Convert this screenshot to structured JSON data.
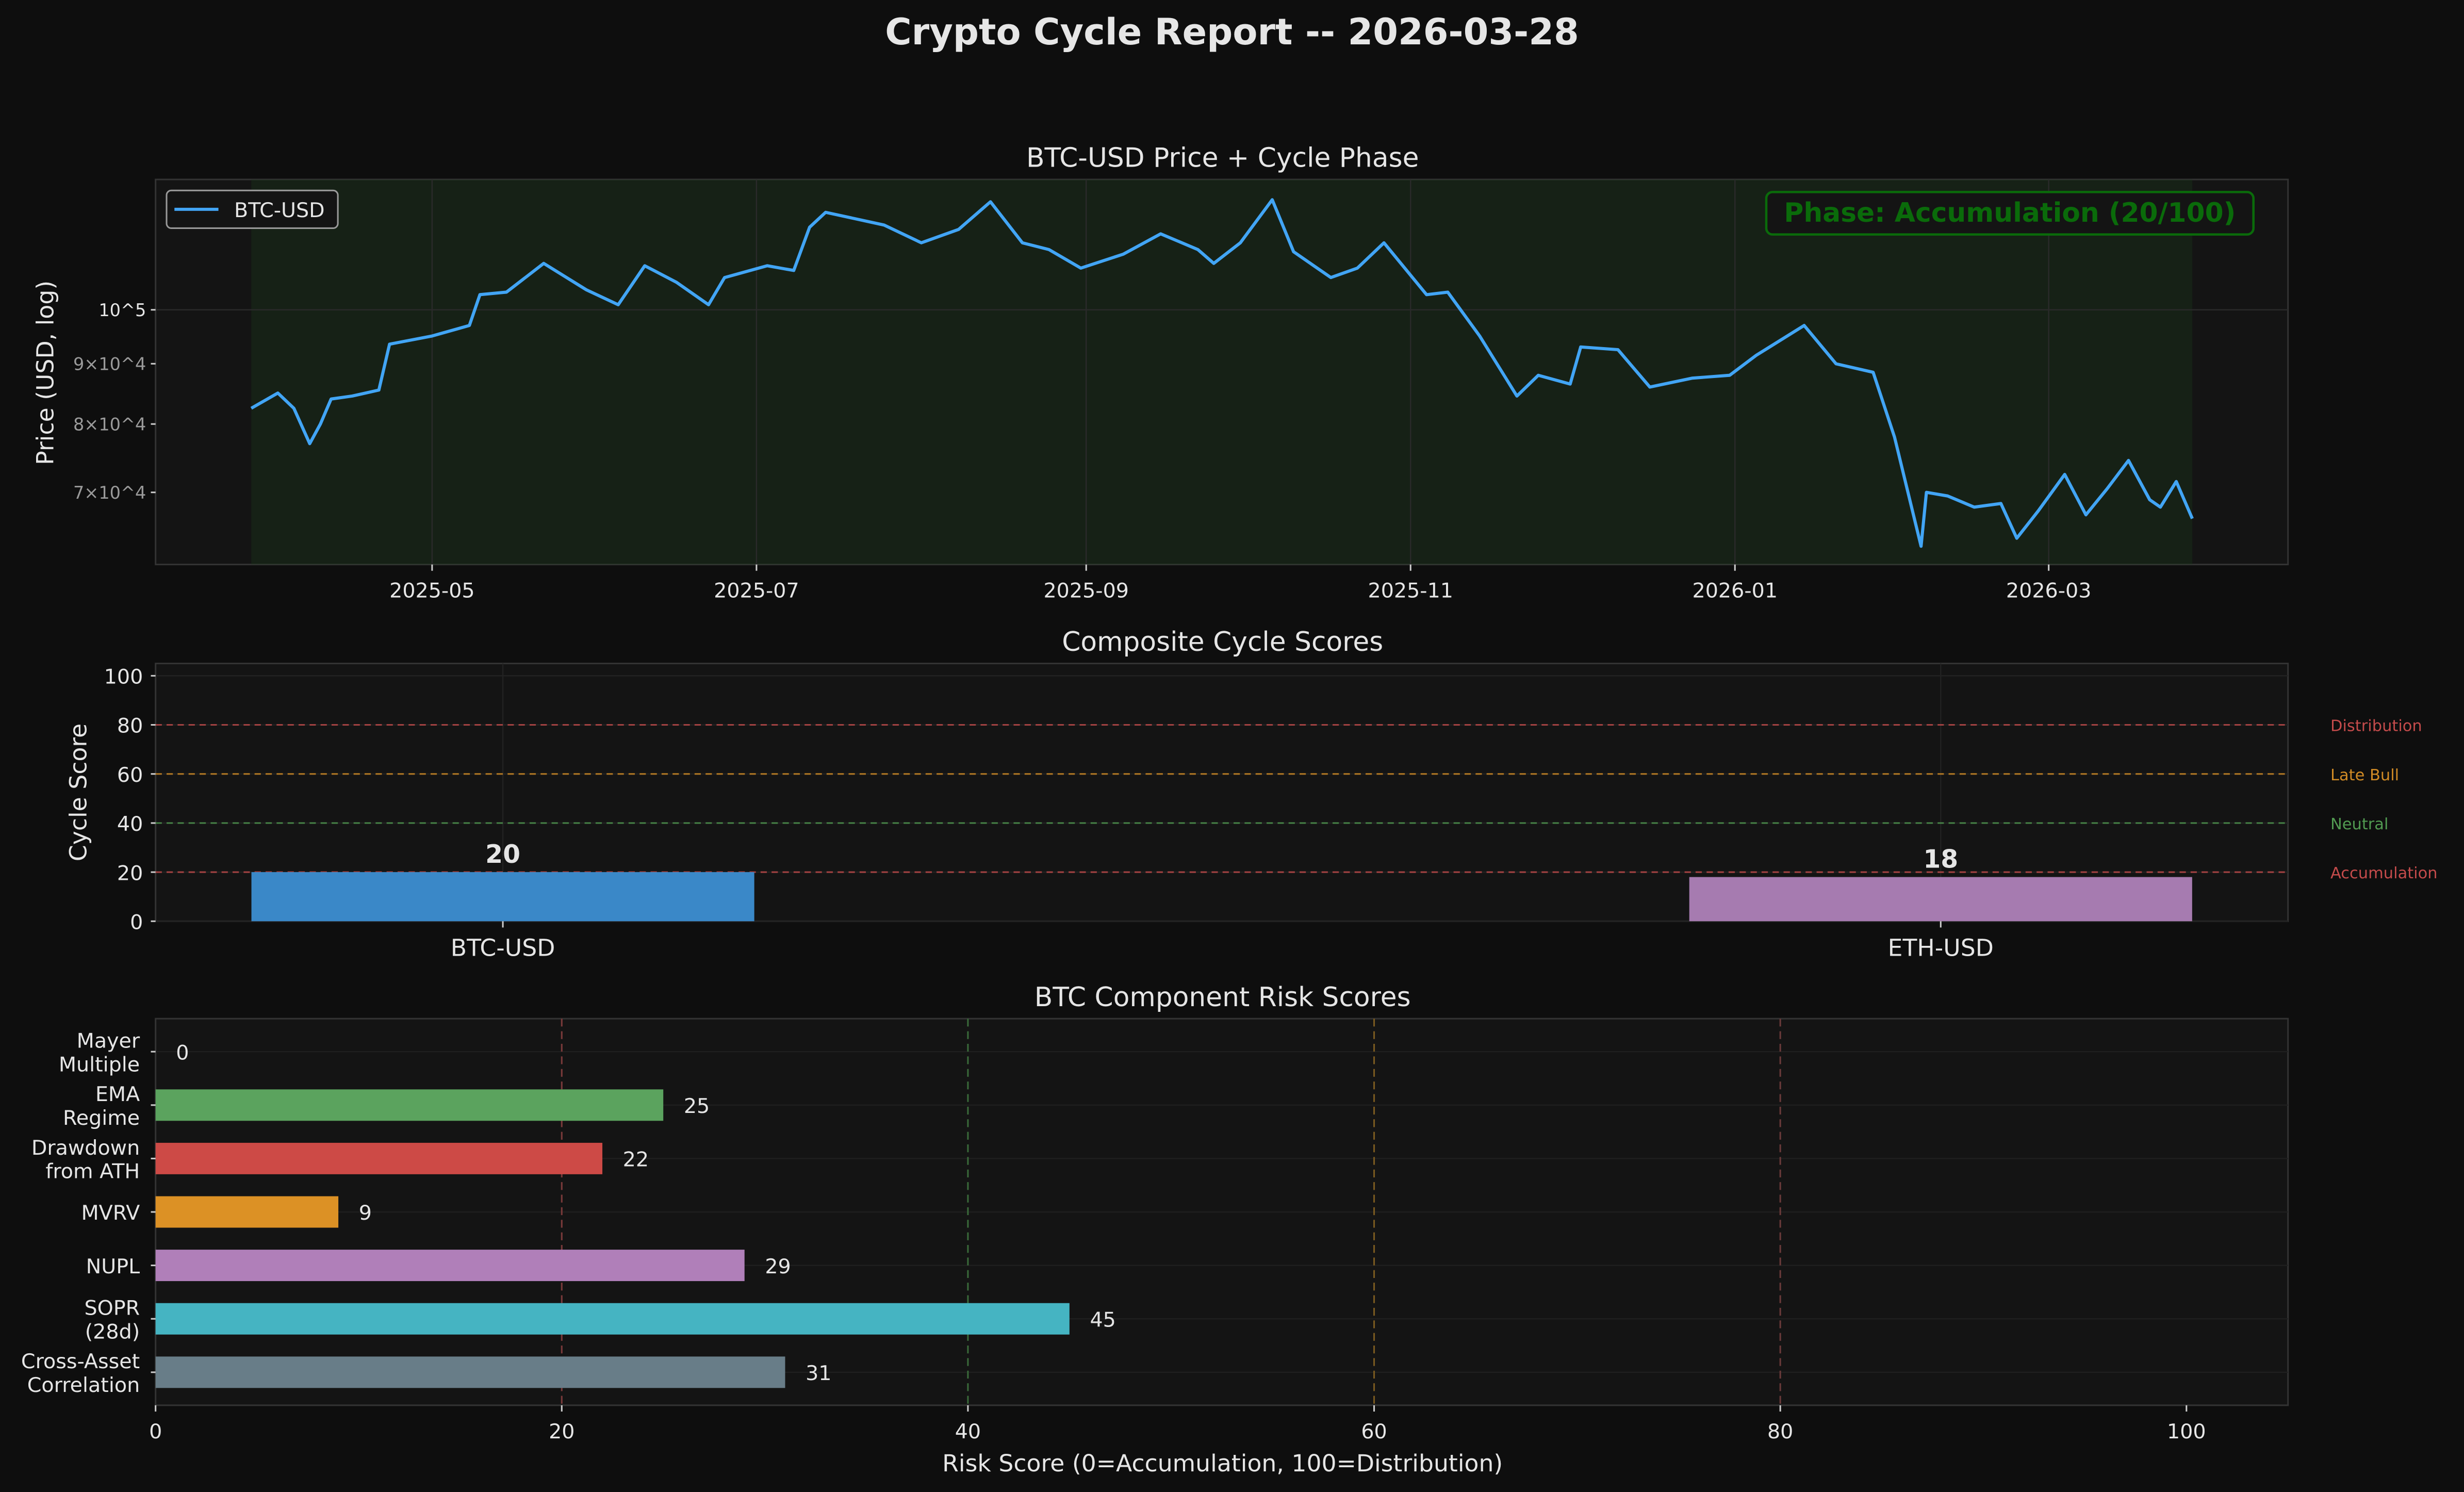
{
  "title": "Crypto Cycle Report -- 2026-03-28",
  "colors": {
    "background": "#0e0e0e",
    "axes_bg": "#141414",
    "btc_line": "#42a5f5",
    "phase_green": "#0a6b0a"
  },
  "chart_data": [
    {
      "type": "line",
      "title": "BTC-USD Price + Cycle Phase",
      "ylabel": "Price (USD, log)",
      "yscale": "log",
      "ylim": [
        60800,
        129000
      ],
      "xlim": [
        "2025-03-10",
        "2026-04-15"
      ],
      "x_ticks": [
        "2025-05",
        "2025-07",
        "2025-09",
        "2025-11",
        "2026-01",
        "2026-03"
      ],
      "y_ticks": [
        {
          "value": 100000,
          "label": "10^5"
        },
        {
          "value": 90000,
          "label": "9×10^4"
        },
        {
          "value": 80000,
          "label": "8×10^4"
        },
        {
          "value": 70000,
          "label": "7×10^4"
        }
      ],
      "legend": {
        "placement": "top-left",
        "entries": [
          "BTC-USD"
        ]
      },
      "annotation": "Phase: Accumulation (20/100)",
      "phase_shading": {
        "phase": "Accumulation",
        "color": "#1a3a1a"
      },
      "series": [
        {
          "name": "BTC-USD",
          "color": "#42a5f5",
          "points": [
            [
              "2025-03-28",
              82500
            ],
            [
              "2025-04-02",
              85000
            ],
            [
              "2025-04-05",
              82500
            ],
            [
              "2025-04-08",
              77000
            ],
            [
              "2025-04-10",
              80000
            ],
            [
              "2025-04-12",
              84000
            ],
            [
              "2025-04-16",
              84500
            ],
            [
              "2025-04-21",
              85500
            ],
            [
              "2025-04-23",
              93500
            ],
            [
              "2025-05-01",
              95000
            ],
            [
              "2025-05-08",
              97000
            ],
            [
              "2025-05-10",
              103000
            ],
            [
              "2025-05-15",
              103500
            ],
            [
              "2025-05-22",
              109500
            ],
            [
              "2025-05-30",
              104000
            ],
            [
              "2025-06-05",
              101000
            ],
            [
              "2025-06-10",
              109000
            ],
            [
              "2025-06-16",
              105500
            ],
            [
              "2025-06-22",
              101000
            ],
            [
              "2025-06-25",
              106500
            ],
            [
              "2025-07-03",
              109000
            ],
            [
              "2025-07-08",
              108000
            ],
            [
              "2025-07-11",
              117500
            ],
            [
              "2025-07-14",
              121000
            ],
            [
              "2025-07-25",
              118000
            ],
            [
              "2025-08-01",
              114000
            ],
            [
              "2025-08-08",
              117000
            ],
            [
              "2025-08-14",
              123500
            ],
            [
              "2025-08-20",
              114000
            ],
            [
              "2025-08-25",
              112500
            ],
            [
              "2025-08-31",
              108500
            ],
            [
              "2025-09-08",
              111500
            ],
            [
              "2025-09-15",
              116000
            ],
            [
              "2025-09-22",
              112500
            ],
            [
              "2025-09-25",
              109500
            ],
            [
              "2025-09-30",
              114000
            ],
            [
              "2025-10-06",
              124000
            ],
            [
              "2025-10-10",
              112000
            ],
            [
              "2025-10-17",
              106500
            ],
            [
              "2025-10-22",
              108500
            ],
            [
              "2025-10-27",
              114000
            ],
            [
              "2025-11-04",
              103000
            ],
            [
              "2025-11-08",
              103500
            ],
            [
              "2025-11-14",
              95000
            ],
            [
              "2025-11-21",
              84500
            ],
            [
              "2025-11-25",
              88000
            ],
            [
              "2025-12-01",
              86500
            ],
            [
              "2025-12-03",
              93000
            ],
            [
              "2025-12-10",
              92500
            ],
            [
              "2025-12-16",
              86000
            ],
            [
              "2025-12-24",
              87500
            ],
            [
              "2025-12-31",
              88000
            ],
            [
              "2026-01-05",
              91500
            ],
            [
              "2026-01-14",
              97000
            ],
            [
              "2026-01-20",
              90000
            ],
            [
              "2026-01-27",
              88500
            ],
            [
              "2026-01-31",
              78000
            ],
            [
              "2026-02-05",
              63000
            ],
            [
              "2026-02-06",
              70000
            ],
            [
              "2026-02-10",
              69500
            ],
            [
              "2026-02-15",
              68000
            ],
            [
              "2026-02-20",
              68500
            ],
            [
              "2026-02-23",
              64000
            ],
            [
              "2026-02-27",
              67500
            ],
            [
              "2026-03-04",
              72500
            ],
            [
              "2026-03-08",
              67000
            ],
            [
              "2026-03-12",
              70500
            ],
            [
              "2026-03-16",
              74500
            ],
            [
              "2026-03-20",
              69000
            ],
            [
              "2026-03-22",
              68000
            ],
            [
              "2026-03-25",
              71500
            ],
            [
              "2026-03-28",
              66500
            ]
          ]
        }
      ]
    },
    {
      "type": "bar",
      "title": "Composite Cycle Scores",
      "ylabel": "Cycle Score",
      "ylim": [
        0,
        105
      ],
      "y_ticks": [
        0,
        20,
        40,
        60,
        80,
        100
      ],
      "categories": [
        "BTC-USD",
        "ETH-USD"
      ],
      "values": [
        20,
        18
      ],
      "bar_colors": [
        "#3a88c8",
        "#a67bb0"
      ],
      "data_labels": [
        "20",
        "18"
      ],
      "thresholds": [
        {
          "value": 80,
          "label": "Distribution",
          "color": "#c44b4b"
        },
        {
          "value": 60,
          "label": "Late Bull",
          "color": "#d08a25"
        },
        {
          "value": 40,
          "label": "Neutral",
          "color": "#519a51"
        },
        {
          "value": 20,
          "label": "Accumulation",
          "color": "#c44b4b"
        }
      ]
    },
    {
      "type": "bar",
      "orientation": "horizontal",
      "title": "BTC Component Risk Scores",
      "xlabel": "Risk Score (0=Accumulation, 100=Distribution)",
      "xlim": [
        0,
        105
      ],
      "x_ticks": [
        0,
        20,
        40,
        60,
        80,
        100
      ],
      "categories": [
        "Mayer\nMultiple",
        "EMA\nRegime",
        "Drawdown\nfrom ATH",
        "MVRV",
        "NUPL",
        "SOPR\n(28d)",
        "Cross-Asset\nCorrelation"
      ],
      "values": [
        0,
        25,
        22,
        9,
        29,
        45,
        31
      ],
      "bar_colors": [
        "#888888",
        "#5ba35e",
        "#cd4a46",
        "#dc9125",
        "#b07fb9",
        "#45b4c2",
        "#687d88"
      ],
      "reference_lines": [
        {
          "value": 20,
          "color": "#7a3a3a"
        },
        {
          "value": 40,
          "color": "#3a6a3a"
        },
        {
          "value": 60,
          "color": "#7a5a20"
        },
        {
          "value": 80,
          "color": "#6a3a3a"
        }
      ]
    }
  ]
}
